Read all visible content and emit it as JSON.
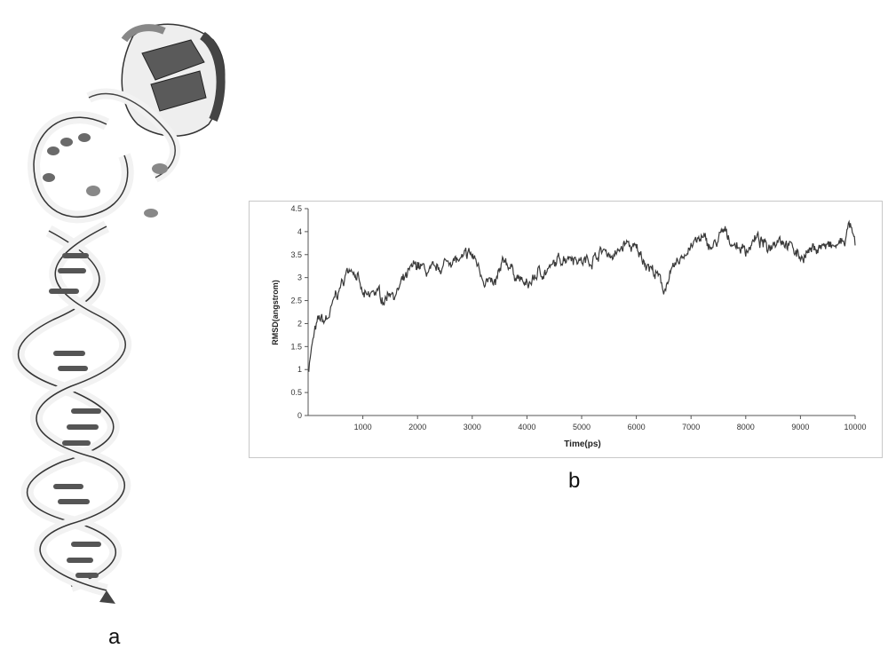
{
  "panels": {
    "a": "a",
    "b": "b"
  },
  "colors": {
    "line": "#3a3a3a",
    "axis": "#555555",
    "frame": "#c8c8c8",
    "ribbon_light": "#f2f2f2",
    "ribbon_dark": "#5a5a5a"
  },
  "chart_data": {
    "type": "line",
    "title": "",
    "xlabel": "Time(ps)",
    "ylabel": "RMSD(angstrom)",
    "xlim": [
      0,
      10000
    ],
    "ylim": [
      0,
      4.5
    ],
    "xticks": [
      1000,
      2000,
      3000,
      4000,
      5000,
      6000,
      7000,
      8000,
      9000,
      10000
    ],
    "yticks": [
      "0",
      "0.5",
      "1",
      "1.5",
      "2",
      "2.5",
      "3",
      "3.5",
      "4",
      "4.5"
    ],
    "grid": false,
    "legend": "none",
    "series": [
      {
        "x": [
          0,
          100,
          200,
          300,
          400,
          500,
          600,
          700,
          800,
          900,
          1000,
          1100,
          1200,
          1300,
          1400,
          1500,
          1600,
          1700,
          1800,
          1900,
          2000,
          2200,
          2400,
          2600,
          2800,
          2950,
          3100,
          3200,
          3400,
          3600,
          3800,
          4000,
          4200,
          4400,
          4600,
          4800,
          5000,
          5200,
          5400,
          5600,
          5800,
          6000,
          6200,
          6400,
          6500,
          6600,
          6800,
          7000,
          7200,
          7400,
          7600,
          7800,
          8000,
          8200,
          8400,
          8600,
          8800,
          9000,
          9200,
          9400,
          9600,
          9800,
          9900,
          10000
        ],
        "values": [
          1.0,
          1.7,
          2.1,
          2.05,
          2.2,
          2.6,
          2.8,
          3.1,
          3.25,
          3.0,
          2.6,
          2.55,
          2.7,
          2.65,
          2.5,
          2.75,
          2.6,
          2.85,
          3.0,
          3.2,
          3.3,
          3.1,
          3.2,
          3.4,
          3.35,
          3.55,
          3.3,
          3.0,
          2.8,
          3.4,
          3.05,
          2.8,
          3.1,
          3.15,
          3.4,
          3.5,
          3.35,
          3.4,
          3.6,
          3.45,
          3.75,
          3.6,
          3.3,
          3.0,
          2.75,
          3.0,
          3.4,
          3.7,
          3.85,
          3.65,
          4.0,
          3.7,
          3.6,
          3.85,
          3.65,
          3.9,
          3.7,
          3.45,
          3.6,
          3.7,
          3.65,
          3.8,
          4.15,
          3.7
        ]
      }
    ]
  }
}
